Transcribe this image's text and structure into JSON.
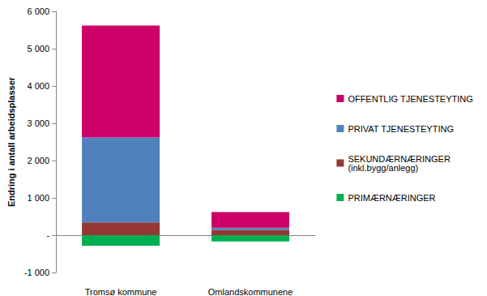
{
  "chart_data": {
    "type": "bar",
    "stacked": true,
    "y_label": "Endring i antall arbeidsplasser",
    "categories": [
      "Tromsø kommune",
      "Omlandskommunene"
    ],
    "series": [
      {
        "name": "PRIMÆRNÆRINGER",
        "color": "#00B050",
        "values": [
          -280,
          -170
        ]
      },
      {
        "name": "SEKUNDÆRNÆRINGER (inkl.bygg/anlegg)",
        "color": "#953735",
        "values": [
          340,
          140
        ]
      },
      {
        "name": "PRIVAT TJENESTEYTING",
        "color": "#4F81BD",
        "values": [
          2280,
          60
        ]
      },
      {
        "name": "OFFENTLIG TJENESTEYTING",
        "color": "#CC0066",
        "values": [
          3000,
          420
        ]
      }
    ],
    "ylim": [
      -1000,
      6000
    ],
    "yticks": [
      {
        "value": -1000,
        "label": "-1 000"
      },
      {
        "value": 0,
        "label": "-"
      },
      {
        "value": 1000,
        "label": "1 000"
      },
      {
        "value": 2000,
        "label": "2 000"
      },
      {
        "value": 3000,
        "label": "3 000"
      },
      {
        "value": 4000,
        "label": "4 000"
      },
      {
        "value": 5000,
        "label": "5 000"
      },
      {
        "value": 6000,
        "label": "6 000"
      }
    ],
    "grid": false,
    "legend": "right"
  }
}
